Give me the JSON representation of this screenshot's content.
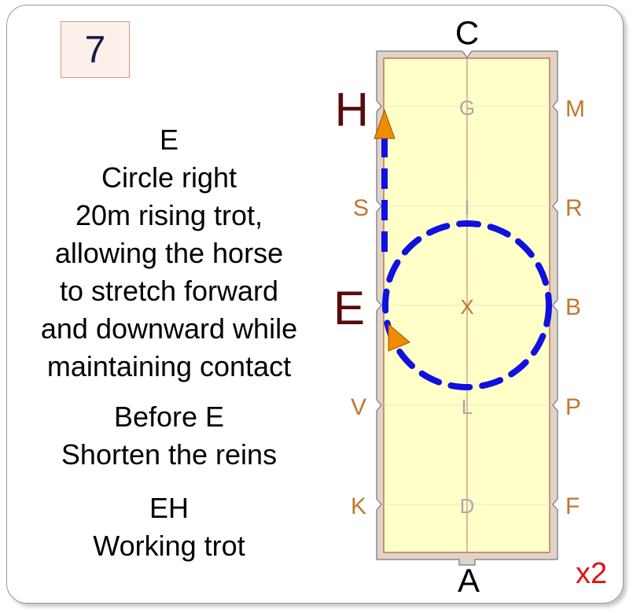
{
  "test_number": "7",
  "instructions": [
    {
      "lines": [
        "E",
        "Circle right",
        "20m rising trot,",
        "allowing the horse",
        "to stretch forward",
        "and downward while",
        "maintaining contact"
      ]
    },
    {
      "lines": [
        "Before E",
        "Shorten the reins"
      ]
    },
    {
      "lines": [
        "EH",
        "Working trot"
      ]
    }
  ],
  "arena": {
    "end_letters": {
      "top": "C",
      "bottom": "A"
    },
    "left_markers": [
      "H",
      "S",
      "E",
      "V",
      "K"
    ],
    "right_markers": [
      "M",
      "R",
      "B",
      "P",
      "F"
    ],
    "centerline_markers": [
      "G",
      "I",
      "X",
      "L",
      "D"
    ],
    "colors": {
      "surface": "#ffffc8",
      "fence": "#e0d5c2",
      "marker_letter": "#c07830",
      "active_letter": "#5a0a0a",
      "centerline_letter": "#aaaaaa",
      "path": "#1010e0",
      "direction_arrow": "#f08c00"
    }
  },
  "repeat": "x2"
}
